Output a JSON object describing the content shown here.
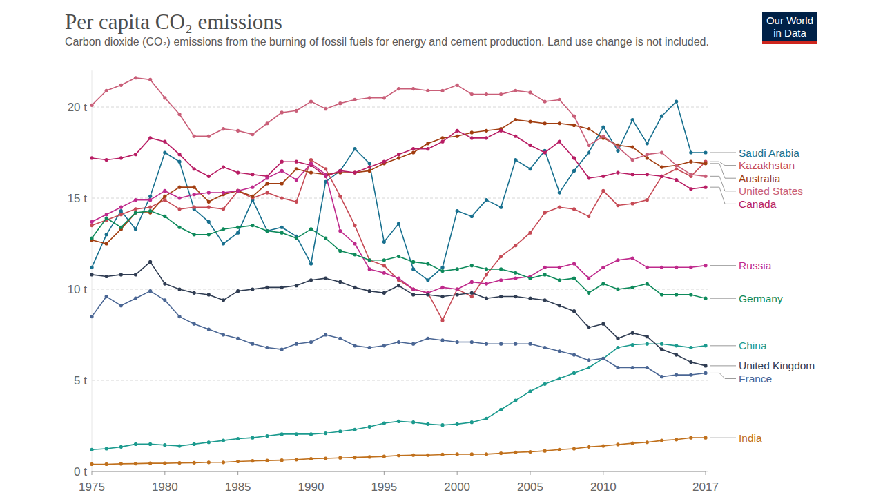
{
  "chart_data": {
    "type": "line",
    "title": "Per capita CO₂ emissions",
    "subtitle": "Carbon dioxide (CO₂) emissions from the burning of fossil fuels for energy and cement production. Land use change is not included.",
    "source_logo": "Our World in Data",
    "x": [
      1975,
      1976,
      1977,
      1978,
      1979,
      1980,
      1981,
      1982,
      1983,
      1984,
      1985,
      1986,
      1987,
      1988,
      1989,
      1990,
      1991,
      1992,
      1993,
      1994,
      1995,
      1996,
      1997,
      1998,
      1999,
      2000,
      2001,
      2002,
      2003,
      2004,
      2005,
      2006,
      2007,
      2008,
      2009,
      2010,
      2011,
      2012,
      2013,
      2014,
      2015,
      2016,
      2017
    ],
    "xlim": [
      1975,
      2017
    ],
    "xticks": [
      1975,
      1980,
      1985,
      1990,
      1995,
      2000,
      2005,
      2010,
      2017
    ],
    "ylim": [
      0,
      22
    ],
    "yticks": [
      {
        "value": 0,
        "label": "0 t"
      },
      {
        "value": 5,
        "label": "5 t"
      },
      {
        "value": 10,
        "label": "10 t"
      },
      {
        "value": 15,
        "label": "15 t"
      },
      {
        "value": 20,
        "label": "20 t"
      }
    ],
    "grid": true,
    "marker": "circle",
    "series": [
      {
        "name": "Saudi Arabia",
        "color": "#18708f",
        "values": [
          11.2,
          13.0,
          14.3,
          13.3,
          15.1,
          17.5,
          17.0,
          14.4,
          13.7,
          12.5,
          13.1,
          14.9,
          13.2,
          13.4,
          12.9,
          11.4,
          15.9,
          16.5,
          17.7,
          16.9,
          12.6,
          13.6,
          11.1,
          10.5,
          11.2,
          14.3,
          14.0,
          14.9,
          14.5,
          17.1,
          16.6,
          17.6,
          15.3,
          16.5,
          17.5,
          18.9,
          17.6,
          19.3,
          18.0,
          19.5,
          20.3,
          17.5,
          17.5
        ]
      },
      {
        "name": "Kazakhstan",
        "color": "#c64a55",
        "values": [
          13.5,
          13.8,
          14.1,
          14.4,
          14.5,
          14.9,
          14.4,
          14.5,
          14.5,
          14.4,
          15.4,
          15.0,
          15.3,
          15.0,
          14.8,
          17.1,
          16.6,
          15.1,
          13.5,
          11.6,
          11.3,
          10.5,
          10.0,
          9.8,
          8.3,
          10.0,
          9.6,
          10.8,
          11.8,
          12.4,
          13.1,
          14.2,
          14.5,
          14.4,
          14.0,
          15.4,
          14.6,
          14.7,
          14.9,
          16.2,
          16.6,
          16.2,
          17.0
        ]
      },
      {
        "name": "Australia",
        "color": "#a13d0f",
        "values": [
          12.7,
          12.5,
          13.3,
          14.2,
          14.2,
          15.1,
          15.6,
          15.6,
          14.8,
          15.2,
          15.4,
          15.1,
          15.8,
          15.8,
          16.6,
          16.4,
          16.3,
          16.4,
          16.4,
          16.5,
          16.9,
          17.2,
          17.5,
          18.0,
          18.3,
          18.4,
          18.6,
          18.7,
          18.8,
          19.3,
          19.2,
          19.1,
          19.1,
          19.0,
          18.8,
          18.3,
          17.9,
          17.8,
          17.2,
          16.7,
          16.8,
          17.0,
          16.9
        ]
      },
      {
        "name": "United States",
        "color": "#c95e78",
        "values": [
          20.1,
          20.9,
          21.2,
          21.6,
          21.5,
          20.5,
          19.6,
          18.4,
          18.4,
          18.8,
          18.7,
          18.5,
          19.1,
          19.7,
          19.8,
          20.3,
          19.9,
          20.2,
          20.4,
          20.5,
          20.5,
          21.0,
          21.0,
          20.9,
          20.9,
          21.2,
          20.7,
          20.7,
          20.7,
          20.9,
          20.8,
          20.3,
          20.4,
          19.5,
          17.9,
          18.4,
          17.8,
          17.1,
          17.4,
          17.5,
          16.8,
          16.3,
          16.2
        ]
      },
      {
        "name": "Canada",
        "color": "#b81d64",
        "values": [
          17.2,
          17.1,
          17.2,
          17.4,
          18.3,
          18.1,
          17.4,
          16.6,
          16.2,
          16.7,
          16.4,
          16.3,
          16.2,
          17.0,
          17.0,
          16.8,
          16.2,
          16.5,
          16.4,
          16.7,
          17.0,
          17.4,
          17.7,
          17.7,
          18.1,
          18.7,
          18.3,
          18.3,
          18.7,
          18.4,
          17.9,
          17.5,
          18.1,
          17.2,
          16.1,
          16.2,
          16.4,
          16.3,
          16.3,
          16.2,
          16.0,
          15.5,
          15.6
        ]
      },
      {
        "name": "Russia",
        "color": "#bf2a8c",
        "values": [
          13.7,
          14.1,
          14.5,
          14.9,
          14.9,
          15.4,
          15.0,
          15.2,
          15.3,
          15.3,
          15.4,
          15.6,
          16.1,
          16.5,
          16.0,
          16.9,
          16.3,
          13.2,
          12.5,
          11.1,
          10.9,
          10.6,
          10.0,
          9.8,
          10.1,
          10.0,
          10.4,
          10.3,
          10.5,
          10.6,
          10.7,
          11.2,
          11.2,
          11.4,
          10.6,
          11.2,
          11.6,
          11.7,
          11.2,
          11.2,
          11.2,
          11.2,
          11.3
        ]
      },
      {
        "name": "Germany",
        "color": "#0e8a5b",
        "values": [
          12.8,
          13.9,
          13.4,
          14.2,
          14.3,
          14.0,
          13.4,
          13.0,
          13.0,
          13.3,
          13.4,
          13.5,
          13.2,
          13.1,
          12.8,
          13.3,
          12.8,
          12.1,
          11.9,
          11.6,
          11.6,
          11.8,
          11.5,
          11.4,
          11.0,
          11.1,
          11.3,
          11.1,
          11.1,
          10.9,
          10.6,
          10.8,
          10.5,
          10.6,
          9.8,
          10.3,
          10.0,
          10.1,
          10.3,
          9.7,
          9.7,
          9.7,
          9.5
        ]
      },
      {
        "name": "China",
        "color": "#1b9a8e",
        "values": [
          1.2,
          1.25,
          1.35,
          1.5,
          1.5,
          1.45,
          1.4,
          1.5,
          1.6,
          1.7,
          1.8,
          1.85,
          1.95,
          2.05,
          2.05,
          2.05,
          2.1,
          2.2,
          2.3,
          2.45,
          2.65,
          2.75,
          2.7,
          2.6,
          2.55,
          2.6,
          2.7,
          2.9,
          3.4,
          3.9,
          4.4,
          4.8,
          5.1,
          5.4,
          5.7,
          6.2,
          6.8,
          6.95,
          7.0,
          7.0,
          6.9,
          6.8,
          6.9
        ]
      },
      {
        "name": "United Kingdom",
        "color": "#2f3c52",
        "values": [
          10.8,
          10.7,
          10.8,
          10.8,
          11.5,
          10.3,
          10.0,
          9.8,
          9.7,
          9.4,
          9.9,
          10.0,
          10.1,
          10.1,
          10.2,
          10.5,
          10.6,
          10.4,
          10.1,
          9.9,
          9.8,
          10.2,
          9.7,
          9.7,
          9.6,
          9.7,
          9.8,
          9.5,
          9.6,
          9.6,
          9.5,
          9.4,
          9.1,
          8.8,
          7.9,
          8.1,
          7.3,
          7.6,
          7.4,
          6.7,
          6.4,
          6.0,
          5.8
        ]
      },
      {
        "name": "France",
        "color": "#4a6694",
        "values": [
          8.5,
          9.6,
          9.1,
          9.5,
          9.9,
          9.4,
          8.5,
          8.1,
          7.8,
          7.5,
          7.3,
          7.0,
          6.8,
          6.7,
          7.0,
          7.1,
          7.5,
          7.3,
          6.9,
          6.8,
          6.9,
          7.1,
          7.0,
          7.3,
          7.2,
          7.1,
          7.1,
          7.0,
          7.0,
          7.0,
          7.0,
          6.8,
          6.6,
          6.4,
          6.1,
          6.2,
          5.7,
          5.7,
          5.7,
          5.2,
          5.3,
          5.3,
          5.4
        ]
      },
      {
        "name": "India",
        "color": "#c0701c",
        "values": [
          0.4,
          0.4,
          0.42,
          0.43,
          0.45,
          0.45,
          0.47,
          0.48,
          0.5,
          0.5,
          0.55,
          0.58,
          0.6,
          0.62,
          0.65,
          0.7,
          0.72,
          0.75,
          0.77,
          0.8,
          0.83,
          0.88,
          0.9,
          0.9,
          0.93,
          0.95,
          0.95,
          0.95,
          1.0,
          1.05,
          1.08,
          1.13,
          1.2,
          1.25,
          1.35,
          1.4,
          1.48,
          1.55,
          1.6,
          1.7,
          1.75,
          1.85,
          1.85
        ]
      }
    ]
  }
}
